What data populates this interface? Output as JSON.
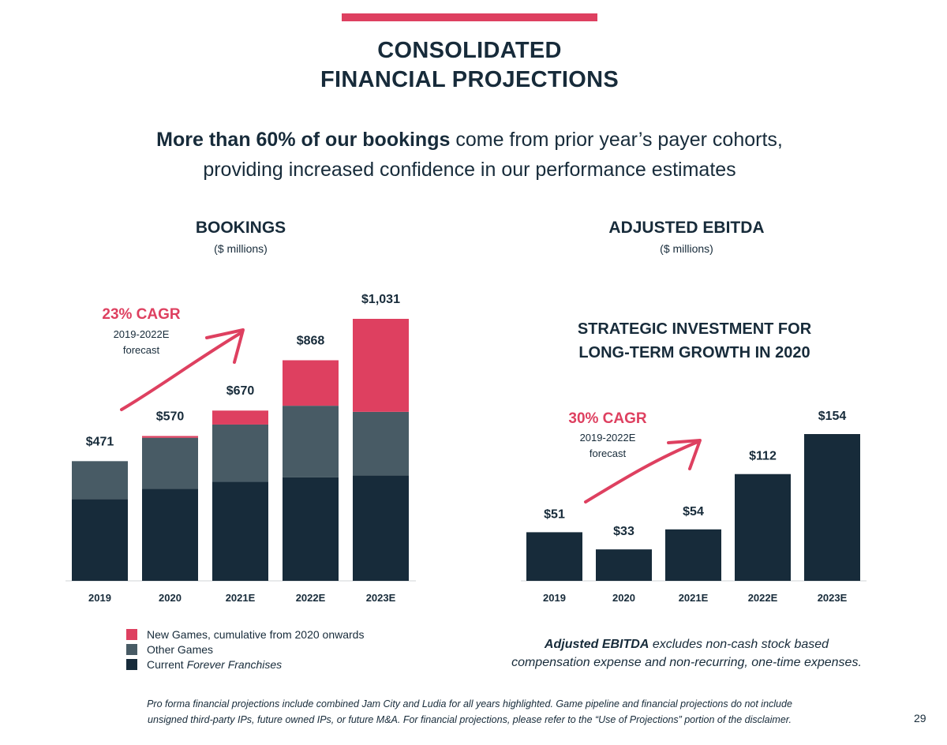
{
  "header": {
    "title_line1": "CONSOLIDATED",
    "title_line2": "FINANCIAL PROJECTIONS",
    "subtitle_bold": "More than 60% of our bookings",
    "subtitle_rest1": " come from prior year’s payer cohorts,",
    "subtitle_line2": "providing increased confidence in our performance estimates"
  },
  "colors": {
    "accent": "#de4060",
    "navy": "#172b3a",
    "slate": "#485b65"
  },
  "bookings": {
    "title": "BOOKINGS",
    "unit": "($ millions)",
    "cagr": "23% CAGR",
    "cagr_sub1": "2019-2022E",
    "cagr_sub2": "forecast"
  },
  "ebitda": {
    "title": "ADJUSTED EBITDA",
    "unit": "($ millions)",
    "strategic_line1": "STRATEGIC INVESTMENT FOR",
    "strategic_line2": "LONG-TERM GROWTH IN 2020",
    "cagr": "30% CAGR",
    "cagr_sub1": "2019-2022E",
    "cagr_sub2": "forecast",
    "note_bold": "Adjusted EBITDA",
    "note_rest1": " excludes non-cash stock based",
    "note_line2": "compensation expense and non-recurring, one-time expenses."
  },
  "legend": {
    "new_games": "New Games, cumulative from 2020 onwards",
    "other_games": "Other Games",
    "current_prefix": "Current ",
    "current_italic": "Forever Franchises"
  },
  "footer": {
    "line1": "Pro forma financial projections include combined Jam City and Ludia for all years highlighted. Game pipeline and financial projections do not include",
    "line2": "unsigned third-party IPs, future owned IPs, or future M&A. For financial projections, please refer to the “Use of Projections” portion of the disclaimer.",
    "page_number": "29"
  },
  "chart_data": [
    {
      "type": "bar",
      "stacked": true,
      "title": "BOOKINGS",
      "ylabel": "($ millions)",
      "categories": [
        "2019",
        "2020",
        "2021E",
        "2022E",
        "2023E"
      ],
      "series": [
        {
          "name": "Current Forever Franchises",
          "color": "#172b3a",
          "values": [
            322,
            362,
            390,
            407,
            415
          ]
        },
        {
          "name": "Other Games",
          "color": "#485b65",
          "values": [
            149,
            201,
            225,
            282,
            250
          ]
        },
        {
          "name": "New Games, cumulative from 2020 onwards",
          "color": "#de4060",
          "values": [
            0,
            7,
            55,
            179,
            366
          ]
        }
      ],
      "totals": [
        471,
        570,
        670,
        868,
        1031
      ],
      "total_labels": [
        "$471",
        "$570",
        "$670",
        "$868",
        "$1,031"
      ],
      "ylim": [
        0,
        1031
      ]
    },
    {
      "type": "bar",
      "title": "ADJUSTED EBITDA",
      "ylabel": "($ millions)",
      "categories": [
        "2019",
        "2020",
        "2021E",
        "2022E",
        "2023E"
      ],
      "values": [
        51,
        33,
        54,
        112,
        154
      ],
      "value_labels": [
        "$51",
        "$33",
        "$54",
        "$112",
        "$154"
      ],
      "ylim": [
        0,
        154
      ]
    }
  ]
}
